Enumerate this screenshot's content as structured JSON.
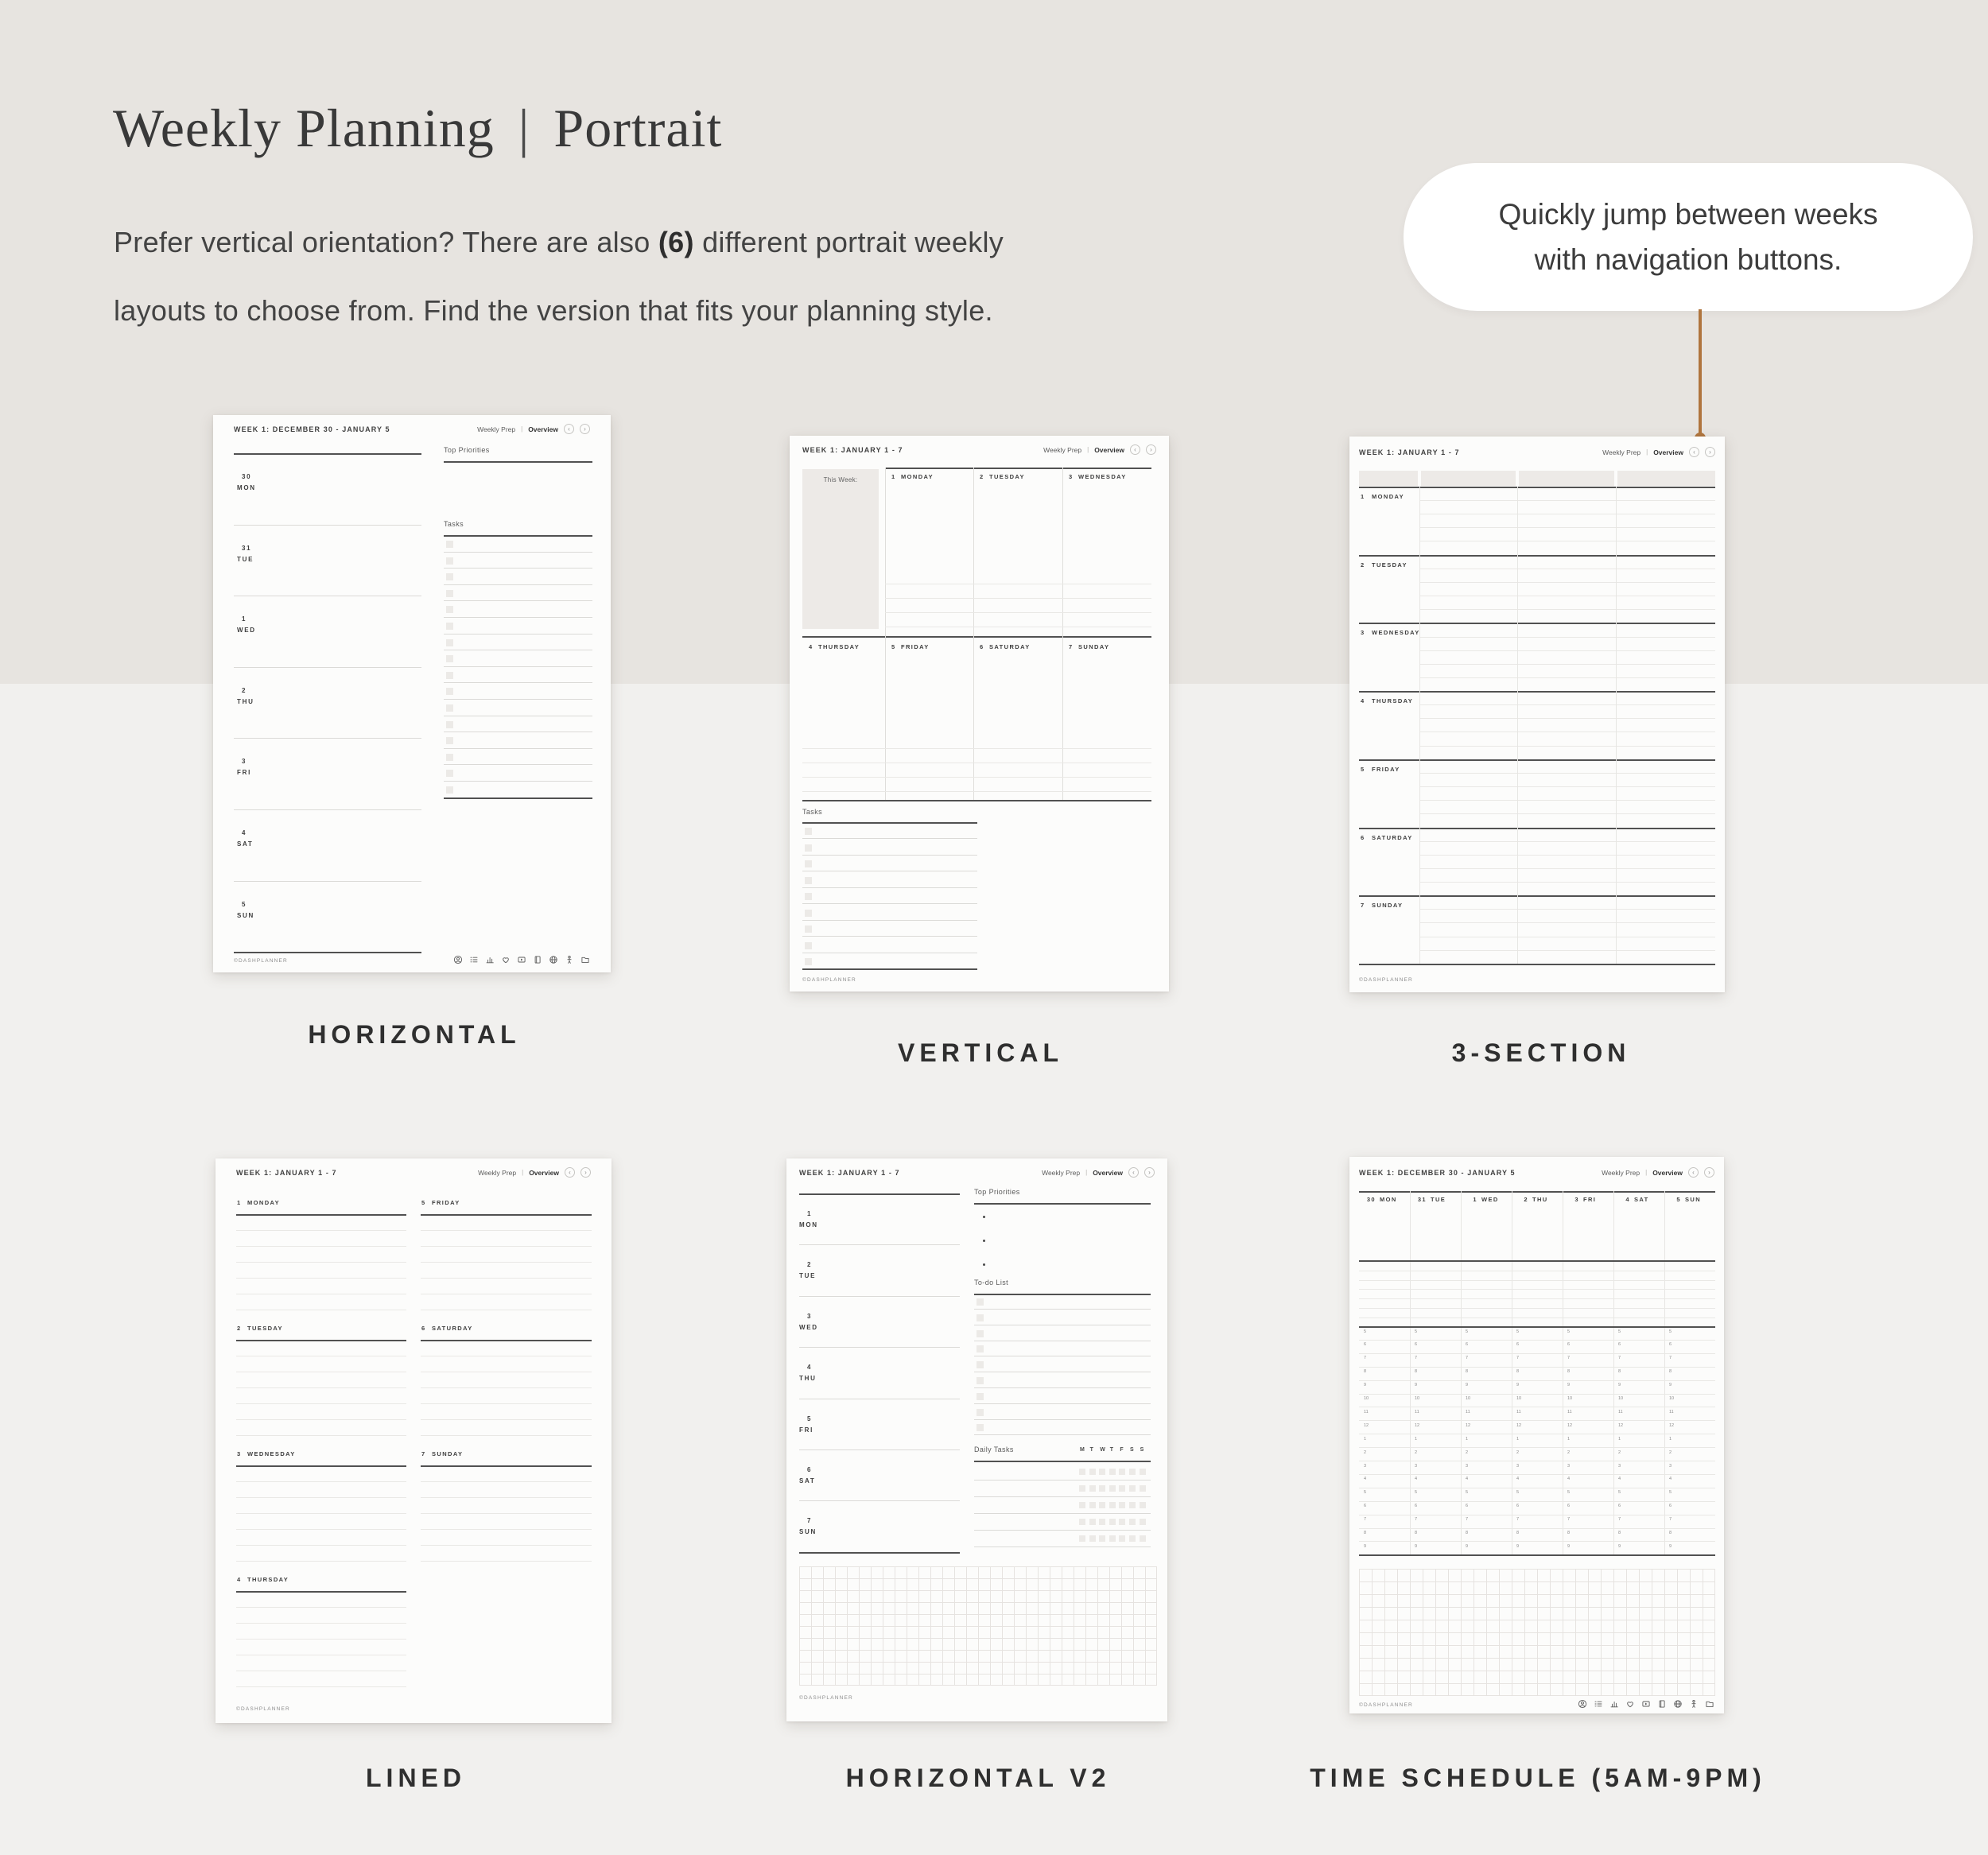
{
  "page": {
    "background_top": "#e7e4e0",
    "background_bottom": "#f1f0ee",
    "accent": "#b0753e"
  },
  "header": {
    "title_main": "Weekly Planning",
    "title_separator": "|",
    "title_sub": "Portrait",
    "desc_line1_before": "Prefer vertical orientation? There are also ",
    "desc_line1_bold": "(6)",
    "desc_line1_after": " different portrait weekly",
    "desc_line2": "layouts to choose from. Find the version that fits your planning style."
  },
  "callout": {
    "line1": "Quickly jump between weeks",
    "line2": "with navigation buttons."
  },
  "planners": [
    {
      "id": "horizontal",
      "label": "HORIZONTAL",
      "header": {
        "week": "WEEK 1: DECEMBER 30 - JANUARY 5",
        "tab_prep": "Weekly Prep",
        "tab_overview": "Overview",
        "prev": "‹",
        "next": "›"
      },
      "days": [
        {
          "num": "30",
          "name": "MON"
        },
        {
          "num": "31",
          "name": "TUE"
        },
        {
          "num": "1",
          "name": "WED"
        },
        {
          "num": "2",
          "name": "THU"
        },
        {
          "num": "3",
          "name": "FRI"
        },
        {
          "num": "4",
          "name": "SAT"
        },
        {
          "num": "5",
          "name": "SUN"
        }
      ],
      "priorities_label": "Top Priorities",
      "tasks_label": "Tasks",
      "task_rows": 16,
      "brand": "©DASHPLANNER",
      "footer_icons": [
        "account-icon",
        "checklist-icon",
        "stats-icon",
        "heart-icon",
        "video-icon",
        "journal-icon",
        "globe-icon",
        "figure-icon",
        "folder-icon"
      ]
    },
    {
      "id": "vertical",
      "label": "VERTICAL",
      "header": {
        "week": "WEEK 1: JANUARY 1 - 7",
        "tab_prep": "Weekly Prep",
        "tab_overview": "Overview",
        "prev": "‹",
        "next": "›"
      },
      "this_week_label": "This Week:",
      "days_top": [
        {
          "num": "1",
          "name": "MONDAY"
        },
        {
          "num": "2",
          "name": "TUESDAY"
        },
        {
          "num": "3",
          "name": "WEDNESDAY"
        }
      ],
      "days_bottom": [
        {
          "num": "4",
          "name": "THURSDAY"
        },
        {
          "num": "5",
          "name": "FRIDAY"
        },
        {
          "num": "6",
          "name": "SATURDAY"
        },
        {
          "num": "7",
          "name": "SUNDAY"
        }
      ],
      "tasks_label": "Tasks",
      "task_rows": 9,
      "brand": "©DASHPLANNER"
    },
    {
      "id": "three-section",
      "label": "3-SECTION",
      "header": {
        "week": "WEEK 1: JANUARY 1 - 7",
        "tab_prep": "Weekly Prep",
        "tab_overview": "Overview",
        "prev": "‹",
        "next": "›"
      },
      "days": [
        {
          "num": "1",
          "name": "MONDAY"
        },
        {
          "num": "2",
          "name": "TUESDAY"
        },
        {
          "num": "3",
          "name": "WEDNESDAY"
        },
        {
          "num": "4",
          "name": "THURSDAY"
        },
        {
          "num": "5",
          "name": "FRIDAY"
        },
        {
          "num": "6",
          "name": "SATURDAY"
        },
        {
          "num": "7",
          "name": "SUNDAY"
        }
      ],
      "brand": "©DASHPLANNER"
    },
    {
      "id": "lined",
      "label": "LINED",
      "header": {
        "week": "WEEK 1: JANUARY 1 - 7",
        "tab_prep": "Weekly Prep",
        "tab_overview": "Overview",
        "prev": "‹",
        "next": "›"
      },
      "days_left": [
        {
          "num": "1",
          "name": "MONDAY"
        },
        {
          "num": "2",
          "name": "TUESDAY"
        },
        {
          "num": "3",
          "name": "WEDNESDAY"
        },
        {
          "num": "4",
          "name": "THURSDAY"
        }
      ],
      "days_right": [
        {
          "num": "5",
          "name": "FRIDAY"
        },
        {
          "num": "6",
          "name": "SATURDAY"
        },
        {
          "num": "7",
          "name": "SUNDAY"
        }
      ],
      "brand": "©DASHPLANNER"
    },
    {
      "id": "horizontal-v2",
      "label": "HORIZONTAL V2",
      "header": {
        "week": "WEEK 1: JANUARY 1 - 7",
        "tab_prep": "Weekly Prep",
        "tab_overview": "Overview",
        "prev": "‹",
        "next": "›"
      },
      "days": [
        {
          "num": "1",
          "name": "MON"
        },
        {
          "num": "2",
          "name": "TUE"
        },
        {
          "num": "3",
          "name": "WED"
        },
        {
          "num": "4",
          "name": "THU"
        },
        {
          "num": "5",
          "name": "FRI"
        },
        {
          "num": "6",
          "name": "SAT"
        },
        {
          "num": "7",
          "name": "SUN"
        }
      ],
      "priorities_label": "Top Priorities",
      "priority_bullets": 3,
      "todo_label": "To-do List",
      "todo_rows": 9,
      "daily_label": "Daily Tasks",
      "day_initials": [
        "M",
        "T",
        "W",
        "T",
        "F",
        "S",
        "S"
      ],
      "daily_rows": 5,
      "brand": "©DASHPLANNER"
    },
    {
      "id": "time-schedule",
      "label": "TIME SCHEDULE (5AM-9PM)",
      "header": {
        "week": "WEEK 1: DECEMBER 30 - JANUARY 5",
        "tab_prep": "Weekly Prep",
        "tab_overview": "Overview",
        "prev": "‹",
        "next": "›"
      },
      "day_cols": [
        {
          "num": "30",
          "name": "MON"
        },
        {
          "num": "31",
          "name": "TUE"
        },
        {
          "num": "1",
          "name": "WED"
        },
        {
          "num": "2",
          "name": "THU"
        },
        {
          "num": "3",
          "name": "FRI"
        },
        {
          "num": "4",
          "name": "SAT"
        },
        {
          "num": "5",
          "name": "SUN"
        }
      ],
      "hours": [
        "5",
        "6",
        "7",
        "8",
        "9",
        "10",
        "11",
        "12",
        "1",
        "2",
        "3",
        "4",
        "5",
        "6",
        "7",
        "8",
        "9"
      ],
      "brand": "©DASHPLANNER",
      "footer_icons": [
        "account-icon",
        "checklist-icon",
        "stats-icon",
        "heart-icon",
        "video-icon",
        "journal-icon",
        "globe-icon",
        "figure-icon",
        "folder-icon"
      ]
    }
  ]
}
